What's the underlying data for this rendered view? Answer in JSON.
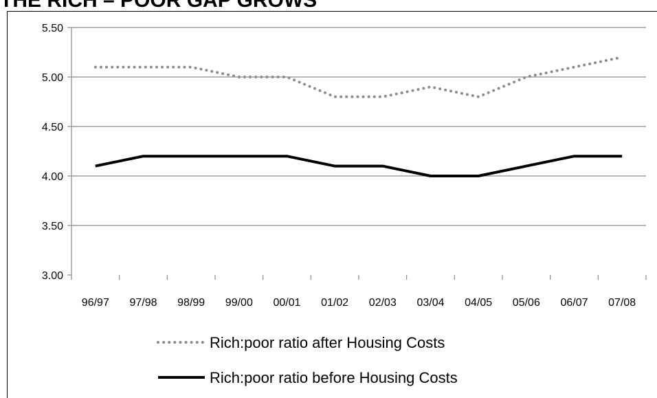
{
  "chart_data": {
    "type": "line",
    "title": "THE RICH – POOR GAP GROWS",
    "xlabel": "",
    "ylabel": "",
    "categories": [
      "96/97",
      "97/98",
      "98/99",
      "99/00",
      "00/01",
      "01/02",
      "02/03",
      "03/04",
      "04/05",
      "05/06",
      "06/07",
      "07/08"
    ],
    "ylim": [
      3.0,
      5.5
    ],
    "yticks": [
      "3.00",
      "3.50",
      "4.00",
      "4.50",
      "5.00",
      "5.50"
    ],
    "grid": true,
    "legend_position": "bottom",
    "series": [
      {
        "name": "Rich:poor ratio after Housing Costs",
        "values": [
          5.1,
          5.1,
          5.1,
          5.0,
          5.0,
          4.8,
          4.8,
          4.9,
          4.8,
          5.0,
          5.1,
          5.2
        ],
        "color": "#8c8c8c",
        "style": "dotted"
      },
      {
        "name": "Rich:poor ratio before Housing Costs",
        "values": [
          4.1,
          4.2,
          4.2,
          4.2,
          4.2,
          4.1,
          4.1,
          4.0,
          4.0,
          4.1,
          4.2,
          4.2
        ],
        "color": "#000000",
        "style": "solid"
      }
    ]
  }
}
